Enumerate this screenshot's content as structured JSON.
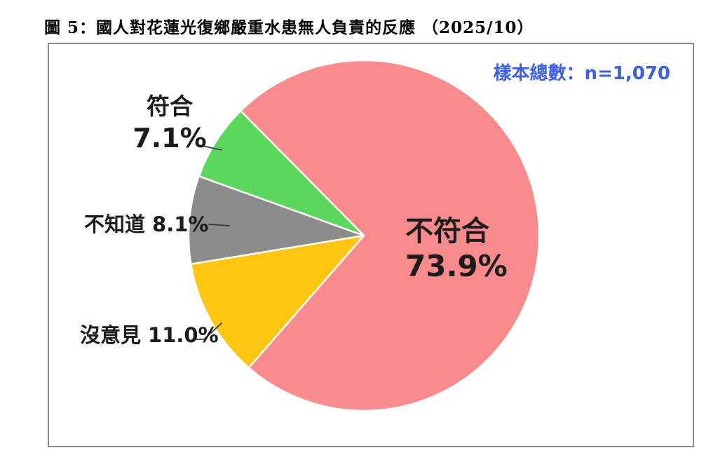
{
  "title": "圖 5：國人對花蓮光復鄉嚴重水患無人負責的反應 （2025/10）",
  "sample_label": "樣本總數：n=1,070",
  "colors": {
    "not_match_pink": "#F98B8C",
    "no_opinion_yellow": "#FEC610",
    "dont_know_gray": "#8C8C8C",
    "match_green": "#5BD75B",
    "sample_text_blue": "#3E5FE0",
    "frame_border_gray": "#8A8A8A",
    "leader_line": "#3A3A3A"
  },
  "chart_data": {
    "type": "pie",
    "title": "圖 5：國人對花蓮光復鄉嚴重水患無人負責的反應 （2025/10）",
    "sample_note": "樣本總數：n=1,070",
    "sample_n": "1,070",
    "start_angle_deg": 315,
    "direction": "clockwise",
    "legend_position": "labels-on-chart",
    "slices": [
      {
        "key": "not-match",
        "label": "不符合",
        "value": 73.9,
        "display": "73.9%",
        "color": "#F98B8C",
        "label_position": "inside"
      },
      {
        "key": "no-opinion",
        "label": "沒意見",
        "value": 11.0,
        "display": "11.0%",
        "color": "#FEC610",
        "label_position": "outside-left"
      },
      {
        "key": "dont-know",
        "label": "不知道",
        "value": 8.1,
        "display": "8.1%",
        "color": "#8C8C8C",
        "label_position": "outside-left"
      },
      {
        "key": "match",
        "label": "符合",
        "value": 7.1,
        "display": "7.1%",
        "color": "#5BD75B",
        "label_position": "outside-left"
      }
    ]
  }
}
